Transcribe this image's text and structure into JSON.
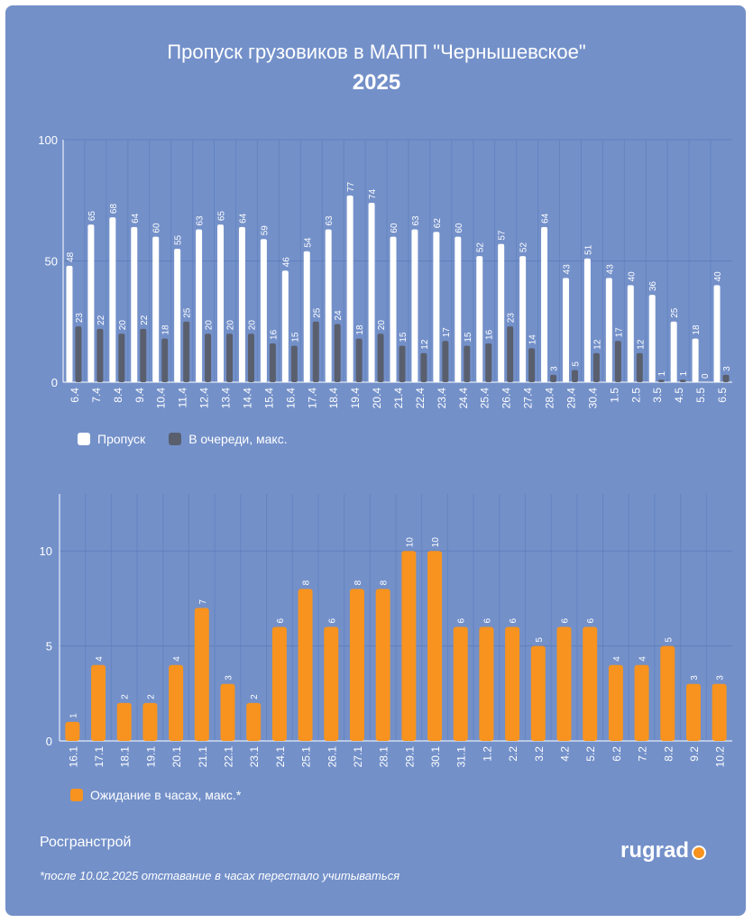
{
  "title": "Пропуск грузовиков в МАПП \"Чернышевское\"",
  "year": "2025",
  "colors": {
    "background": "#7390c9",
    "pass": "#ffffff",
    "queue": "#5a5f6e",
    "wait": "#f7931e",
    "grid": "#5f7fbd"
  },
  "chart_data": [
    {
      "type": "bar",
      "title": "Пропуск грузовиков в МАПП \"Чернышевское\" 2025",
      "ylim": [
        0,
        100
      ],
      "yticks": [
        "0",
        "50",
        "100"
      ],
      "categories": [
        "6.4",
        "7.4",
        "8.4",
        "9.4",
        "10.4",
        "11.4",
        "12.4",
        "13.4",
        "14.4",
        "15.4",
        "16.4",
        "17.4",
        "18.4",
        "19.4",
        "20.4",
        "21.4",
        "22.4",
        "23.4",
        "24.4",
        "25.4",
        "26.4",
        "27.4",
        "28.4",
        "29.4",
        "30.4",
        "1.5",
        "2.5",
        "3.5",
        "4.5",
        "5.5",
        "6.5"
      ],
      "series": [
        {
          "name": "Пропуск",
          "values": [
            48,
            65,
            68,
            64,
            60,
            55,
            63,
            65,
            64,
            59,
            46,
            54,
            63,
            77,
            74,
            60,
            63,
            62,
            60,
            52,
            57,
            52,
            64,
            43,
            51,
            43,
            40,
            36,
            25,
            18,
            40
          ]
        },
        {
          "name": "В очереди, макс.",
          "values": [
            23,
            22,
            20,
            22,
            18,
            25,
            20,
            20,
            20,
            16,
            15,
            25,
            24,
            18,
            20,
            15,
            12,
            17,
            15,
            16,
            23,
            14,
            3,
            5,
            12,
            17,
            12,
            1,
            1,
            0,
            3
          ]
        }
      ]
    },
    {
      "type": "bar",
      "ylim": [
        0,
        13
      ],
      "yticks": [
        "0",
        "5",
        "10"
      ],
      "categories": [
        "16.1",
        "17.1",
        "18.1",
        "19.1",
        "20.1",
        "21.1",
        "22.1",
        "23.1",
        "24.1",
        "25.1",
        "26.1",
        "27.1",
        "28.1",
        "29.1",
        "30.1",
        "31.1",
        "1.2",
        "2.2",
        "3.2",
        "4.2",
        "5.2",
        "6.2",
        "7.2",
        "8.2",
        "9.2",
        "10.2"
      ],
      "series": [
        {
          "name": "Ожидание в часах, макс.*",
          "values": [
            1,
            4,
            2,
            2,
            4,
            7,
            3,
            2,
            6,
            8,
            6,
            8,
            8,
            10,
            10,
            6,
            6,
            6,
            5,
            6,
            6,
            4,
            4,
            5,
            3,
            3
          ]
        }
      ]
    }
  ],
  "legend1": {
    "pass": "Пропуск",
    "queue": "В очереди, макс."
  },
  "legend2": {
    "wait": "Ожидание в часах, макс.*"
  },
  "source": "Росгранстрой",
  "footnote": "*после 10.02.2025 отставание в часах перестало учитываться",
  "logo": "rugrad"
}
